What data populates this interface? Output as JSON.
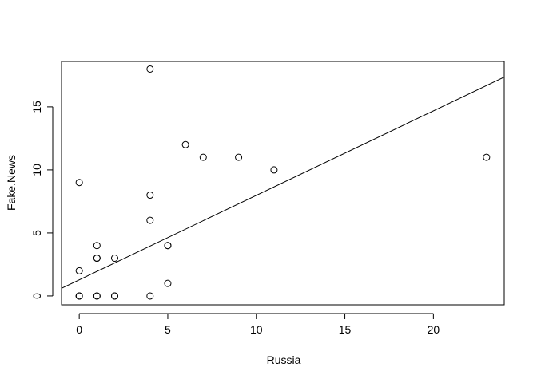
{
  "chart_data": {
    "type": "scatter",
    "title": "",
    "xlabel": "Russia",
    "ylabel": "Fake.News",
    "xlim": [
      -1.0,
      24.0
    ],
    "ylim": [
      -0.7,
      18.6
    ],
    "xticks": [
      0,
      5,
      10,
      15,
      20
    ],
    "yticks": [
      0,
      5,
      10,
      15
    ],
    "xtick_labels": [
      "0",
      "5",
      "10",
      "15",
      "20"
    ],
    "ytick_labels": [
      "0",
      "5",
      "10",
      "15"
    ],
    "grid": false,
    "points": [
      {
        "x": 0,
        "y": 0
      },
      {
        "x": 0,
        "y": 0
      },
      {
        "x": 0,
        "y": 0
      },
      {
        "x": 0,
        "y": 2
      },
      {
        "x": 0,
        "y": 9
      },
      {
        "x": 1,
        "y": 0
      },
      {
        "x": 1,
        "y": 0
      },
      {
        "x": 1,
        "y": 3
      },
      {
        "x": 1,
        "y": 3
      },
      {
        "x": 1,
        "y": 4
      },
      {
        "x": 2,
        "y": 0
      },
      {
        "x": 2,
        "y": 0
      },
      {
        "x": 2,
        "y": 3
      },
      {
        "x": 4,
        "y": 0
      },
      {
        "x": 4,
        "y": 6
      },
      {
        "x": 4,
        "y": 8
      },
      {
        "x": 4,
        "y": 18
      },
      {
        "x": 5,
        "y": 1
      },
      {
        "x": 5,
        "y": 4
      },
      {
        "x": 5,
        "y": 4
      },
      {
        "x": 6,
        "y": 12
      },
      {
        "x": 7,
        "y": 11
      },
      {
        "x": 9,
        "y": 11
      },
      {
        "x": 11,
        "y": 10
      },
      {
        "x": 23,
        "y": 11
      }
    ],
    "regression_line": {
      "intercept": 1.28,
      "slope": 0.67
    }
  }
}
